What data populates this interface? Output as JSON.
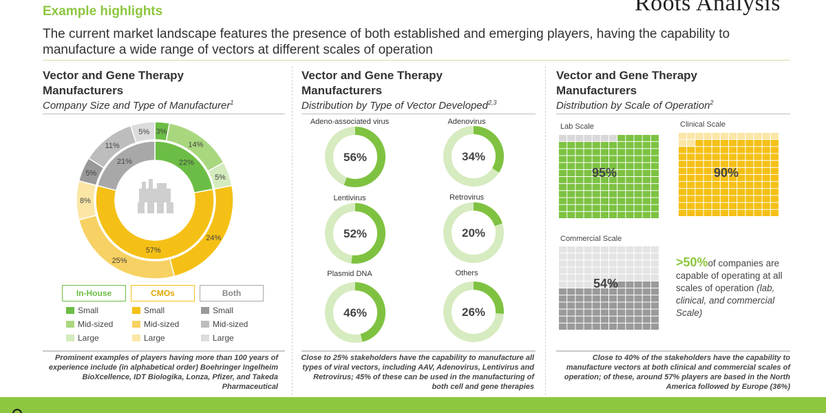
{
  "header": {
    "tag": "Example highlights",
    "brand": "Roots Analysis",
    "headline": "The current market landscape features the presence of both established and emerging players, having the capability to manufacture a wide range of vectors at different scales of operation"
  },
  "panels": {
    "left": {
      "title": "Vector and Gene Therapy Manufacturers",
      "subtitle": "Company Size and Type of Manufacturer",
      "subtitle_ref": "1",
      "footnote": "Prominent examples of players having more than 100 years of experience include (in alphabetical order) Boehringer Ingelheim BioXcellence, IDT Biologika, Lonza, Pfizer, and Takeda Pharmaceutical"
    },
    "middle": {
      "title": "Vector and Gene Therapy Manufacturers",
      "subtitle": "Distribution by Type of Vector Developed",
      "subtitle_ref": "2,3",
      "footnote": "Close to 25% stakeholders have the capability to manufacture all types of viral vectors, including AAV, Adenovirus, Lentivirus and Retrovirus; 45% of these can be used in the manufacturing of both cell and gene therapies"
    },
    "right": {
      "title": "Vector and Gene Therapy Manufacturers",
      "subtitle": "Distribution by Scale of Operation",
      "subtitle_ref": "2",
      "footnote": "Close to 40% of the stakeholders have the capability to manufacture vectors at both clinical and commercial scales of operation; of these, around 57% players are based in the North America followed by Europe (36%)"
    }
  },
  "callout": {
    "big": ">50%",
    "text": "of companies are capable of operating at all scales of operation",
    "italic": "(lab, clinical, and commercial Scale)"
  },
  "legend": {
    "groups": [
      {
        "name": "In-House",
        "color": "#6cbd45"
      },
      {
        "name": "CMOs",
        "color": "#f5c016"
      },
      {
        "name": "Both",
        "color": "#a8a8a8"
      }
    ],
    "sizes": [
      "Small",
      "Mid-sized",
      "Large"
    ],
    "swatches": [
      [
        "#6cbd45",
        "#a9d77e",
        "#d3ebbd"
      ],
      [
        "#f5c016",
        "#f7d163",
        "#fbe6a6"
      ],
      [
        "#999999",
        "#bdbdbd",
        "#dcdcdc"
      ]
    ]
  },
  "colors": {
    "accent": "#8dc63f",
    "ring_filled": "#7fc241",
    "ring_track": "#d6ebbf",
    "lab": "#7dc242",
    "clinical": "#f5c016",
    "commercial": "#9a9a9a"
  },
  "chart_data": [
    {
      "type": "pie",
      "title": "Company Size and Type of Manufacturer",
      "inner_ring": {
        "categories": [
          "In-House",
          "CMOs",
          "Both"
        ],
        "values": [
          22,
          57,
          21
        ],
        "colors": [
          "#6cbd45",
          "#f5c016",
          "#a8a8a8"
        ]
      },
      "outer_ring": {
        "categories": [
          "In-House Small",
          "In-House Mid-sized",
          "In-House Large",
          "CMOs Small",
          "CMOs Mid-sized",
          "CMOs Large",
          "Both Small",
          "Both Mid-sized",
          "Both Large"
        ],
        "values": [
          3,
          14,
          5,
          24,
          25,
          8,
          5,
          11,
          5
        ],
        "colors": [
          "#6cbd45",
          "#a9d77e",
          "#d3ebbd",
          "#f5c016",
          "#f7d163",
          "#fbe6a6",
          "#999999",
          "#bdbdbd",
          "#dcdcdc"
        ]
      }
    },
    {
      "type": "pie",
      "title": "Distribution by Type of Vector Developed",
      "categories": [
        "Adeno-associated virus",
        "Adenovirus",
        "Lentivirus",
        "Retrovirus",
        "Plasmid DNA",
        "Others"
      ],
      "values": [
        56,
        34,
        52,
        20,
        46,
        26
      ],
      "value_labels": [
        "56%",
        "34%",
        "52%",
        "20%",
        "46%",
        "26%"
      ]
    },
    {
      "type": "heatmap",
      "title": "Distribution by Scale of Operation",
      "categories": [
        "Lab Scale",
        "Clinical Scale",
        "Commercial Scale"
      ],
      "values": [
        95,
        90,
        54
      ],
      "value_labels": [
        "95%",
        "90%",
        "54%"
      ]
    }
  ]
}
